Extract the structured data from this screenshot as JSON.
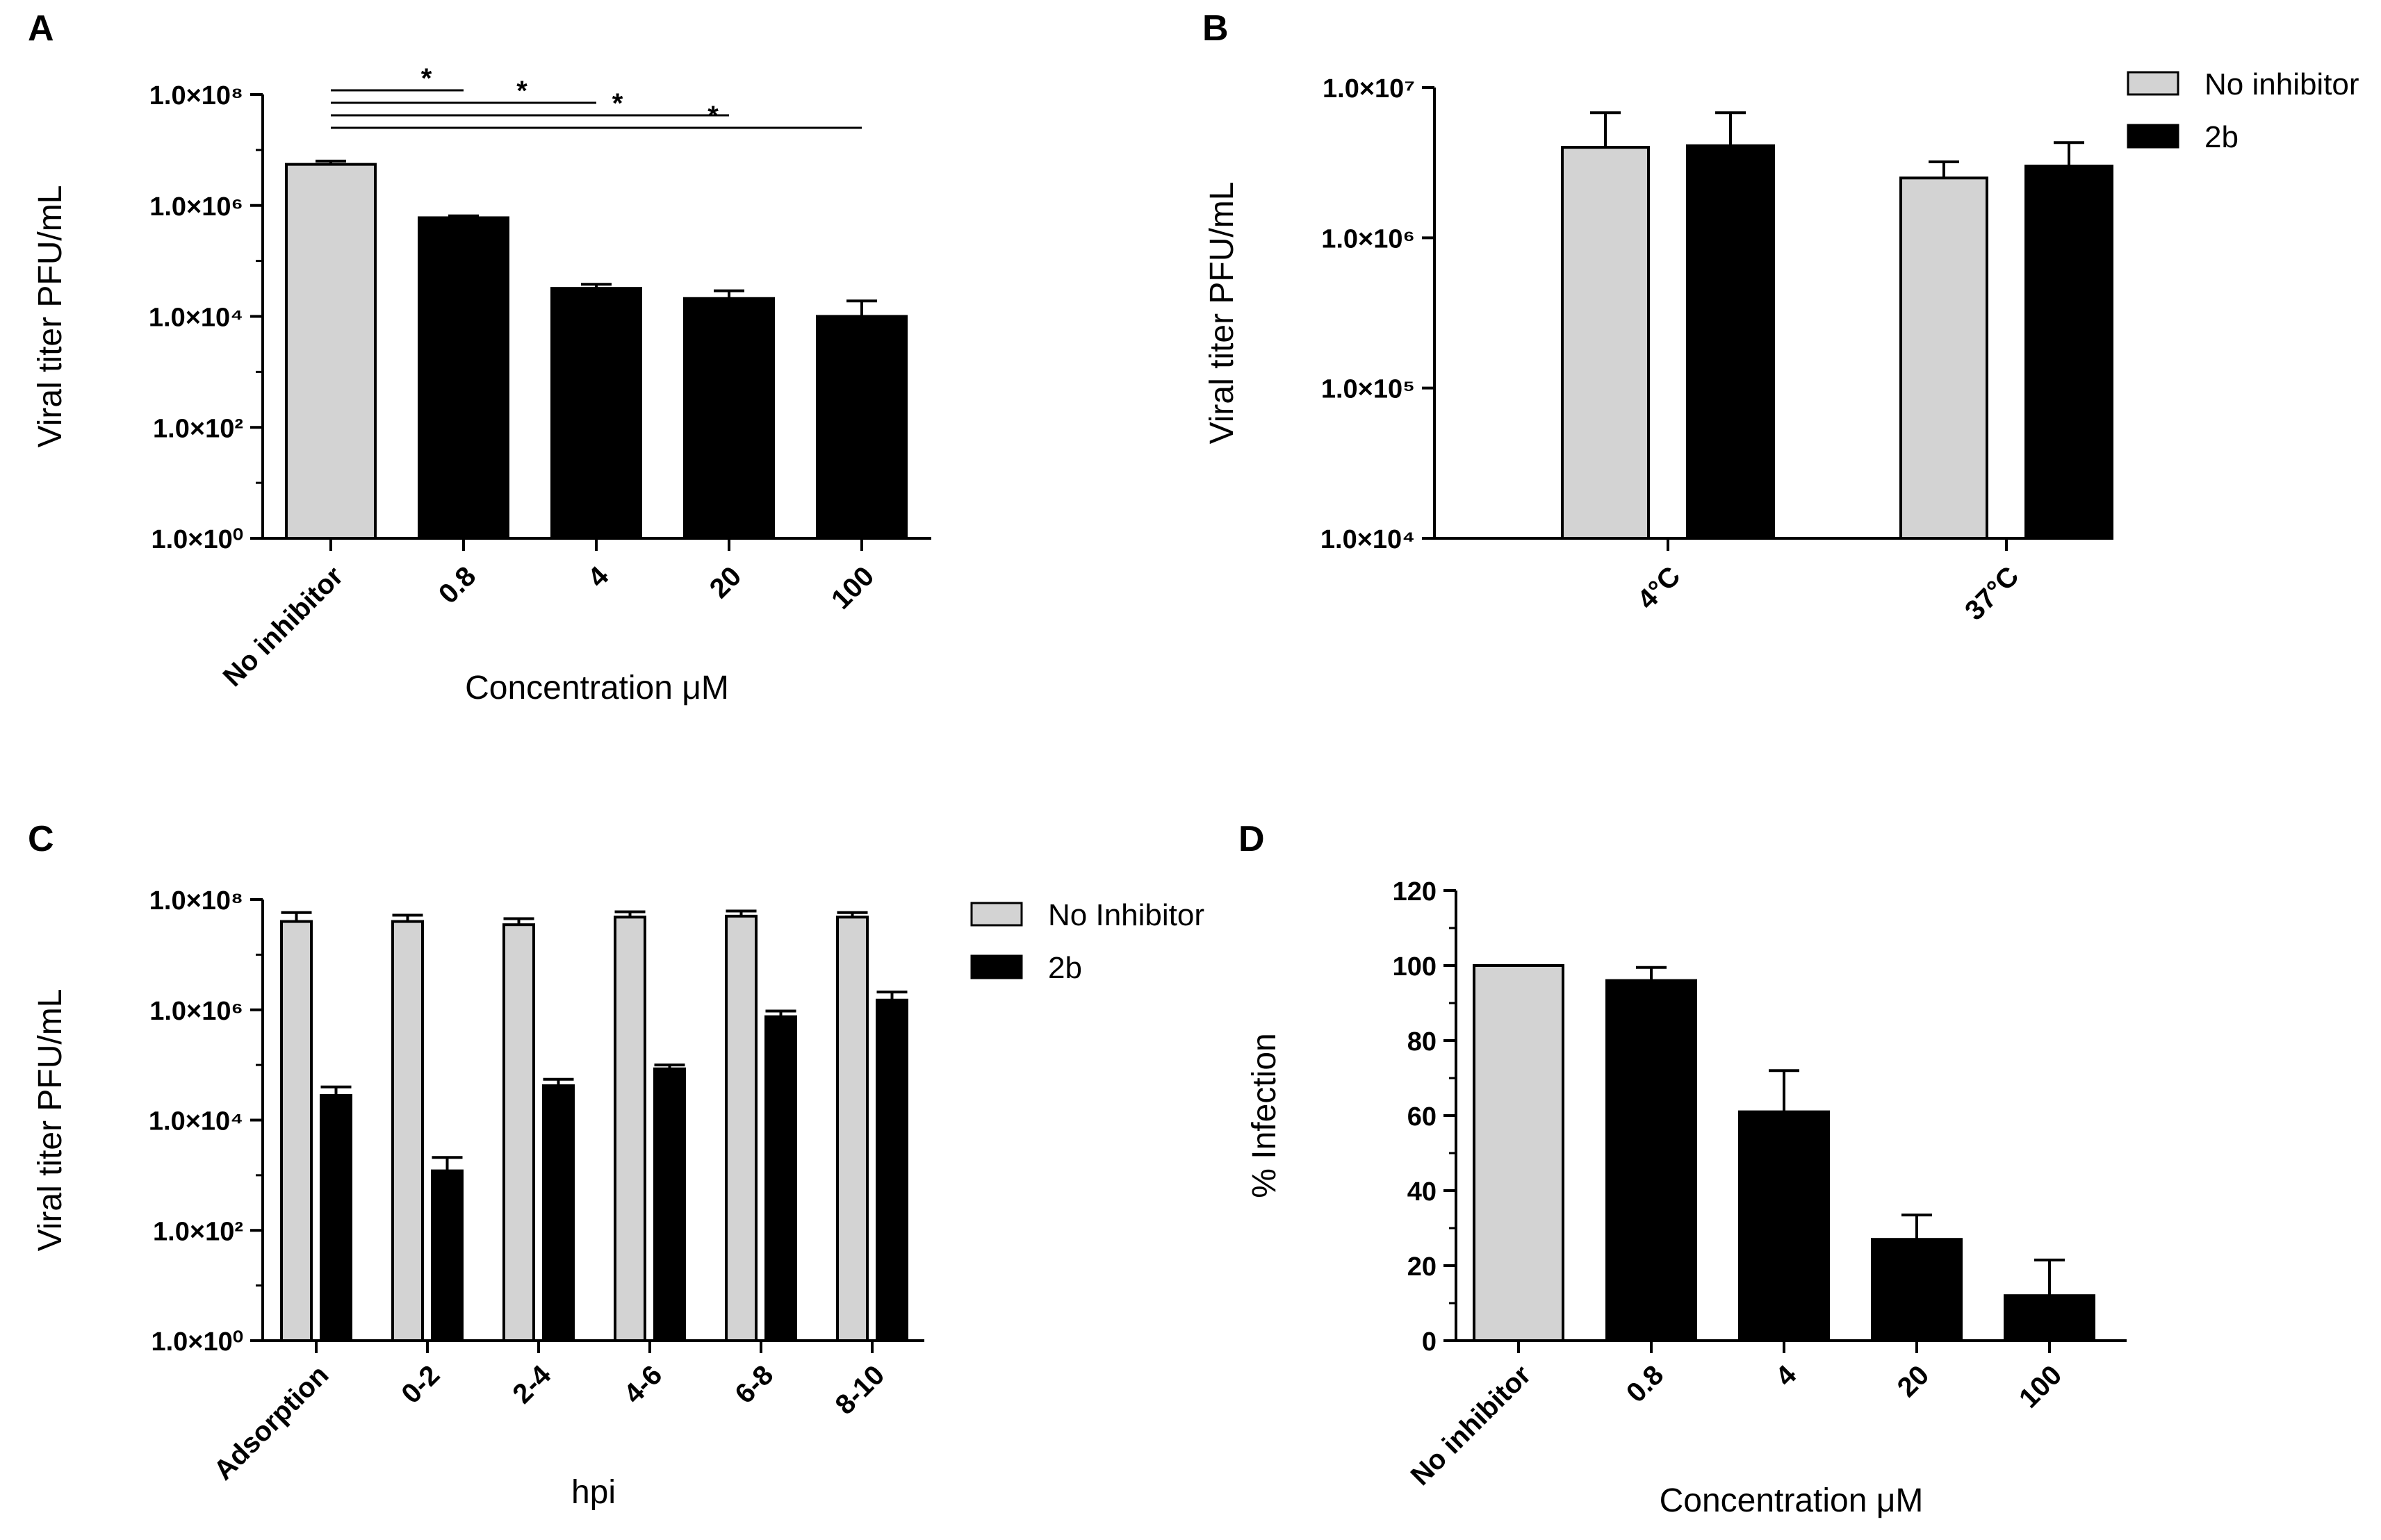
{
  "chart_data": [
    {
      "panel": "A",
      "type": "bar",
      "scale": "log",
      "categories": [
        "No inhibitor",
        "0.8",
        "4",
        "20",
        "100"
      ],
      "values": [
        5500000,
        600000,
        32000,
        21000,
        10000
      ],
      "errors": [
        6300000,
        650000,
        38000,
        29000,
        19000
      ],
      "colors": [
        "#d3d3d3",
        "#000000",
        "#000000",
        "#000000",
        "#000000"
      ],
      "ylabel": "Viral titer PFU/mL",
      "xlabel": "Concentration μM",
      "ylim": [
        1,
        100000000
      ],
      "yticks": [
        "1.0×10⁰",
        "1.0×10²",
        "1.0×10⁴",
        "1.0×10⁶",
        "1.0×10⁸"
      ],
      "significance": [
        {
          "from": "No inhibitor",
          "to": "0.8",
          "label": "*"
        },
        {
          "from": "No inhibitor",
          "to": "4",
          "label": "*"
        },
        {
          "from": "No inhibitor",
          "to": "20",
          "label": "*"
        },
        {
          "from": "No inhibitor",
          "to": "100",
          "label": "*"
        }
      ]
    },
    {
      "panel": "B",
      "type": "bar",
      "scale": "log",
      "categories": [
        "4°C",
        "37°C"
      ],
      "series": [
        {
          "name": "No inhibitor",
          "color": "#d3d3d3",
          "values": [
            4000000,
            2500000
          ],
          "errors": [
            6800000,
            3200000
          ]
        },
        {
          "name": "2b",
          "color": "#000000",
          "values": [
            4100000,
            3000000
          ],
          "errors": [
            6800000,
            4300000
          ]
        }
      ],
      "ylabel": "Viral titer PFU/mL",
      "xlabel": "",
      "ylim": [
        10000,
        10000000
      ],
      "yticks": [
        "1.0×10⁴",
        "1.0×10⁵",
        "1.0×10⁶",
        "1.0×10⁷"
      ],
      "legend": "top-right"
    },
    {
      "panel": "C",
      "type": "bar",
      "scale": "log",
      "categories": [
        "Adsorption",
        "0-2",
        "2-4",
        "4-6",
        "6-8",
        "8-10"
      ],
      "series": [
        {
          "name": "No Inhibitor",
          "color": "#d3d3d3",
          "values": [
            40000000,
            40000000,
            35000000,
            48000000,
            50000000,
            48000000
          ],
          "errors": [
            58000000,
            52000000,
            45000000,
            60000000,
            62000000,
            58000000
          ]
        },
        {
          "name": "2b",
          "color": "#000000",
          "values": [
            28000,
            1200,
            42000,
            85000,
            750000,
            1500000
          ],
          "errors": [
            40000,
            2100,
            55000,
            100000,
            950000,
            2100000
          ]
        }
      ],
      "ylabel": "Viral titer PFU/mL",
      "xlabel": "hpi",
      "ylim": [
        1,
        100000000
      ],
      "yticks": [
        "1.0×10⁰",
        "1.0×10²",
        "1.0×10⁴",
        "1.0×10⁶",
        "1.0×10⁸"
      ],
      "legend": "top-right"
    },
    {
      "panel": "D",
      "type": "bar",
      "scale": "linear",
      "categories": [
        "No inhibitor",
        "0.8",
        "4",
        "20",
        "100"
      ],
      "values": [
        100,
        96,
        61,
        27,
        12
      ],
      "errors": [
        100,
        99.5,
        72,
        33.5,
        21.5
      ],
      "colors": [
        "#d3d3d3",
        "#000000",
        "#000000",
        "#000000",
        "#000000"
      ],
      "ylabel": "% Infection",
      "xlabel": "Concentration μM",
      "ylim": [
        0,
        120
      ],
      "yticks": [
        "0",
        "20",
        "40",
        "60",
        "80",
        "100",
        "120"
      ]
    }
  ]
}
